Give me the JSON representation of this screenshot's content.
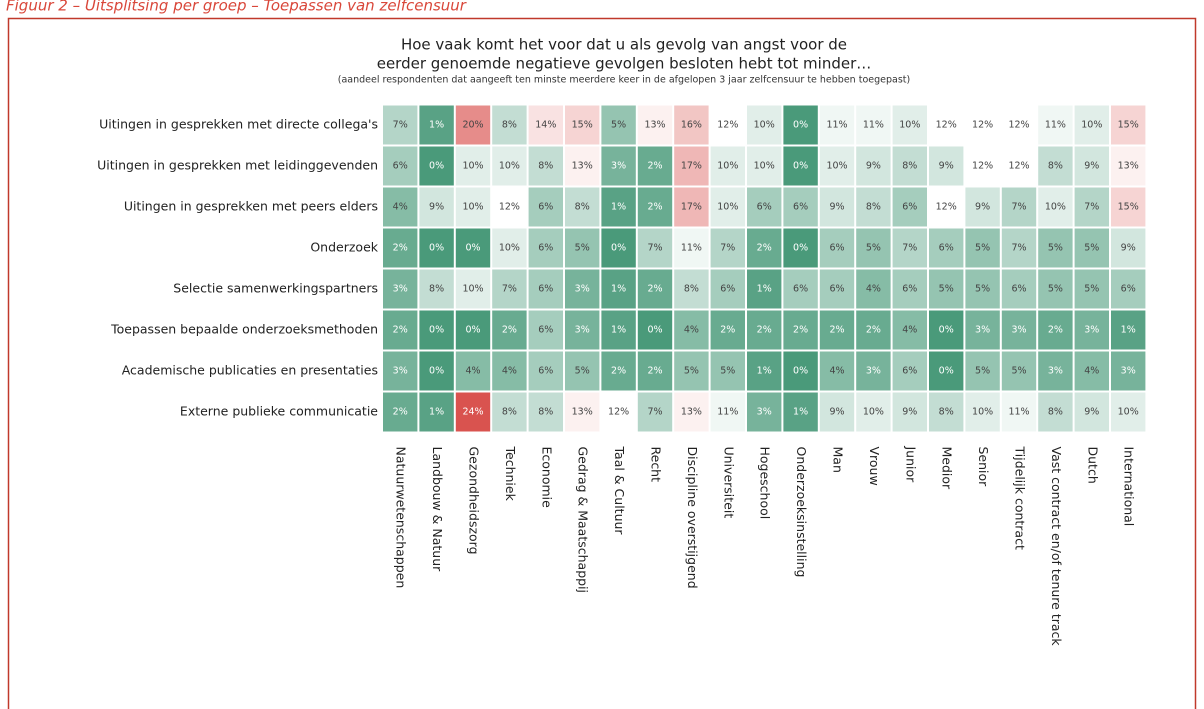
{
  "chart_data": {
    "type": "heatmap",
    "caption": "Figuur 2 – Uitsplitsing per groep – Toepassen van zelfcensuur",
    "title": [
      "Hoe vaak komt het voor dat u als gevolg van angst voor de",
      "eerder genoemde negatieve gevolgen besloten hebt tot minder…"
    ],
    "subtitle": "(aandeel respondenten dat aangeeft ten minste meerdere keer in de afgelopen 3 jaar zelfcensuur te hebben toegepast)",
    "colors": [
      "#4a9a7a",
      "#ffffff",
      "#d9534f"
    ],
    "categories": [
      "Natuurwetenschappen",
      "Landbouw & Natuur",
      "Gezondheidszorg",
      "Techniek",
      "Economie",
      "Gedrag & Maatschappij",
      "Taal & Cultuur",
      "Recht",
      "Discipline overstijgend",
      "Universiteit",
      "Hogeschool",
      "Onderzoeksinstelling",
      "Man",
      "Vrouw",
      "Junior",
      "Medior",
      "Senior",
      "Tijdelijk contract",
      "Vast contract en/of tenure track",
      "Dutch",
      "International"
    ],
    "series": [
      {
        "name": "Uitingen in gesprekken met directe collega's",
        "values": [
          7,
          1,
          20,
          8,
          14,
          15,
          5,
          13,
          16,
          12,
          10,
          0,
          11,
          11,
          10,
          12,
          12,
          12,
          11,
          10,
          15
        ],
        "value_labels": [
          "7%",
          "1%",
          "20%",
          "8%",
          "14%",
          "15%",
          "5%",
          "13%",
          "16%",
          "12%",
          "10%",
          "0%",
          "11%",
          "11%",
          "10%",
          "12%",
          "12%",
          "12%",
          "11%",
          "10%",
          "15%"
        ]
      },
      {
        "name": "Uitingen in gesprekken met leidinggevenden",
        "values": [
          6,
          0,
          10,
          10,
          8,
          13,
          3,
          2,
          17,
          10,
          10,
          0,
          10,
          9,
          8,
          9,
          12,
          12,
          8,
          9,
          13
        ],
        "value_labels": [
          "6%",
          "0%",
          "10%",
          "10%",
          "8%",
          "13%",
          "3%",
          "2%",
          "17%",
          "10%",
          "10%",
          "0%",
          "10%",
          "9%",
          "8%",
          "9%",
          "12%",
          "12%",
          "8%",
          "9%",
          "13%"
        ]
      },
      {
        "name": "Uitingen in gesprekken met peers elders",
        "values": [
          4,
          9,
          10,
          12,
          6,
          8,
          1,
          2,
          17,
          10,
          6,
          6,
          9,
          8,
          6,
          12,
          9,
          7,
          10,
          7,
          15
        ],
        "value_labels": [
          "4%",
          "9%",
          "10%",
          "12%",
          "6%",
          "8%",
          "1%",
          "2%",
          "17%",
          "10%",
          "6%",
          "6%",
          "9%",
          "8%",
          "6%",
          "12%",
          "9%",
          "7%",
          "10%",
          "7%",
          "15%"
        ]
      },
      {
        "name": "Onderzoek",
        "values": [
          2,
          0,
          0,
          10,
          6,
          5,
          0,
          7,
          11,
          7,
          2,
          0,
          6,
          5,
          7,
          6,
          5,
          7,
          5,
          5,
          9
        ],
        "value_labels": [
          "2%",
          "0%",
          "0%",
          "10%",
          "6%",
          "5%",
          "0%",
          "7%",
          "11%",
          "7%",
          "2%",
          "0%",
          "6%",
          "5%",
          "7%",
          "6%",
          "5%",
          "7%",
          "5%",
          "5%",
          "9%"
        ]
      },
      {
        "name": "Selectie samenwerkingspartners",
        "values": [
          3,
          8,
          10,
          7,
          6,
          3,
          1,
          2,
          8,
          6,
          1,
          6,
          6,
          4,
          6,
          5,
          5,
          6,
          5,
          5,
          6
        ],
        "value_labels": [
          "3%",
          "8%",
          "10%",
          "7%",
          "6%",
          "3%",
          "1%",
          "2%",
          "8%",
          "6%",
          "1%",
          "6%",
          "6%",
          "4%",
          "6%",
          "5%",
          "5%",
          "6%",
          "5%",
          "5%",
          "6%"
        ]
      },
      {
        "name": "Toepassen bepaalde onderzoeksmethoden",
        "values": [
          2,
          0,
          0,
          2,
          6,
          3,
          1,
          0,
          4,
          2,
          2,
          2,
          2,
          2,
          4,
          0,
          3,
          3,
          2,
          3,
          1
        ],
        "value_labels": [
          "2%",
          "0%",
          "0%",
          "2%",
          "6%",
          "3%",
          "1%",
          "0%",
          "4%",
          "2%",
          "2%",
          "2%",
          "2%",
          "2%",
          "4%",
          "0%",
          "3%",
          "3%",
          "2%",
          "3%",
          "1%"
        ]
      },
      {
        "name": "Academische publicaties en presentaties",
        "values": [
          3,
          0,
          4,
          4,
          6,
          5,
          2,
          2,
          5,
          5,
          1,
          0,
          4,
          3,
          6,
          0,
          5,
          5,
          3,
          4,
          3
        ],
        "value_labels": [
          "3%",
          "0%",
          "4%",
          "4%",
          "6%",
          "5%",
          "2%",
          "2%",
          "5%",
          "5%",
          "1%",
          "0%",
          "4%",
          "3%",
          "6%",
          "0%",
          "5%",
          "5%",
          "3%",
          "4%",
          "3%"
        ]
      },
      {
        "name": "Externe publieke communicatie",
        "values": [
          2,
          1,
          24,
          8,
          8,
          13,
          12,
          7,
          13,
          11,
          3,
          1,
          9,
          10,
          9,
          8,
          10,
          11,
          8,
          9,
          10
        ],
        "value_labels": [
          "2%",
          "1%",
          "24%",
          "8%",
          "8%",
          "13%",
          "12%",
          "7%",
          "13%",
          "11%",
          "3%",
          "1%",
          "9%",
          "10%",
          "9%",
          "8%",
          "10%",
          "11%",
          "8%",
          "9%",
          "10%"
        ]
      }
    ]
  }
}
